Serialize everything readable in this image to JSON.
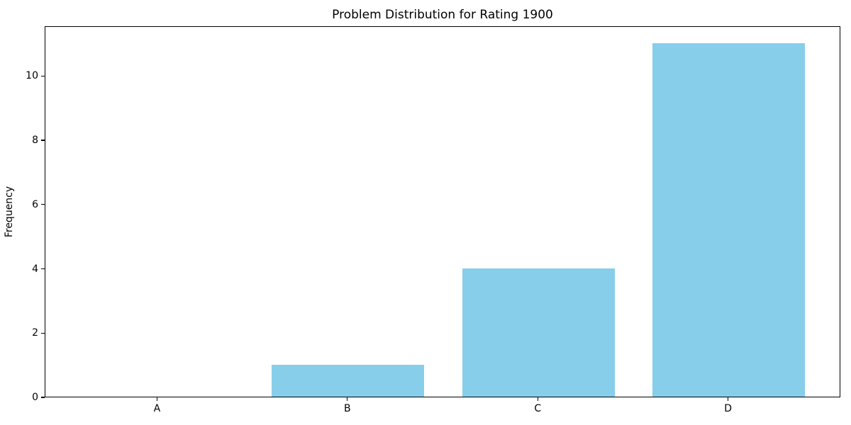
{
  "chart_data": {
    "type": "bar",
    "title": "Problem Distribution for Rating 1900",
    "categories": [
      "A",
      "B",
      "C",
      "D"
    ],
    "values": [
      0,
      1,
      4,
      11
    ],
    "xlabel": "",
    "ylabel": "Frequency",
    "ylim": [
      0,
      11.55
    ],
    "yticks": [
      0,
      2,
      4,
      6,
      8,
      10
    ],
    "bar_color": "#87CEEB",
    "background_color": "#FFFFFF",
    "axis_color": "#000000",
    "grid": false,
    "legend_position": "none"
  }
}
